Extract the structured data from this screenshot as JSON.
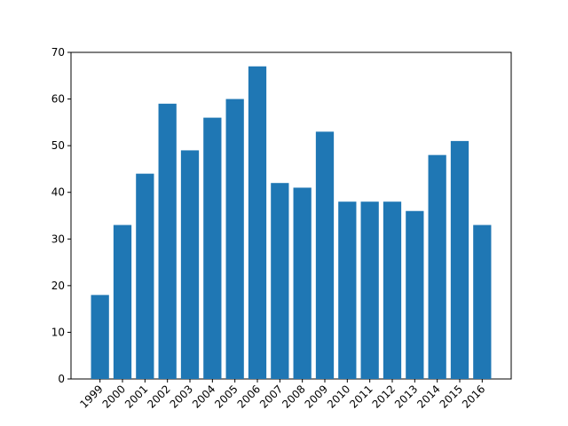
{
  "chart_data": {
    "type": "bar",
    "categories": [
      "1999",
      "2000",
      "2001",
      "2002",
      "2003",
      "2004",
      "2005",
      "2006",
      "2007",
      "2008",
      "2009",
      "2010",
      "2011",
      "2012",
      "2013",
      "2014",
      "2015",
      "2016"
    ],
    "values": [
      18,
      33,
      44,
      59,
      49,
      56,
      60,
      67,
      42,
      41,
      53,
      38,
      38,
      38,
      36,
      48,
      51,
      33
    ],
    "color": "#1f77b4",
    "ylim": [
      0,
      70
    ],
    "yticks": [
      0,
      10,
      20,
      30,
      40,
      50,
      60,
      70
    ],
    "grid": false
  }
}
